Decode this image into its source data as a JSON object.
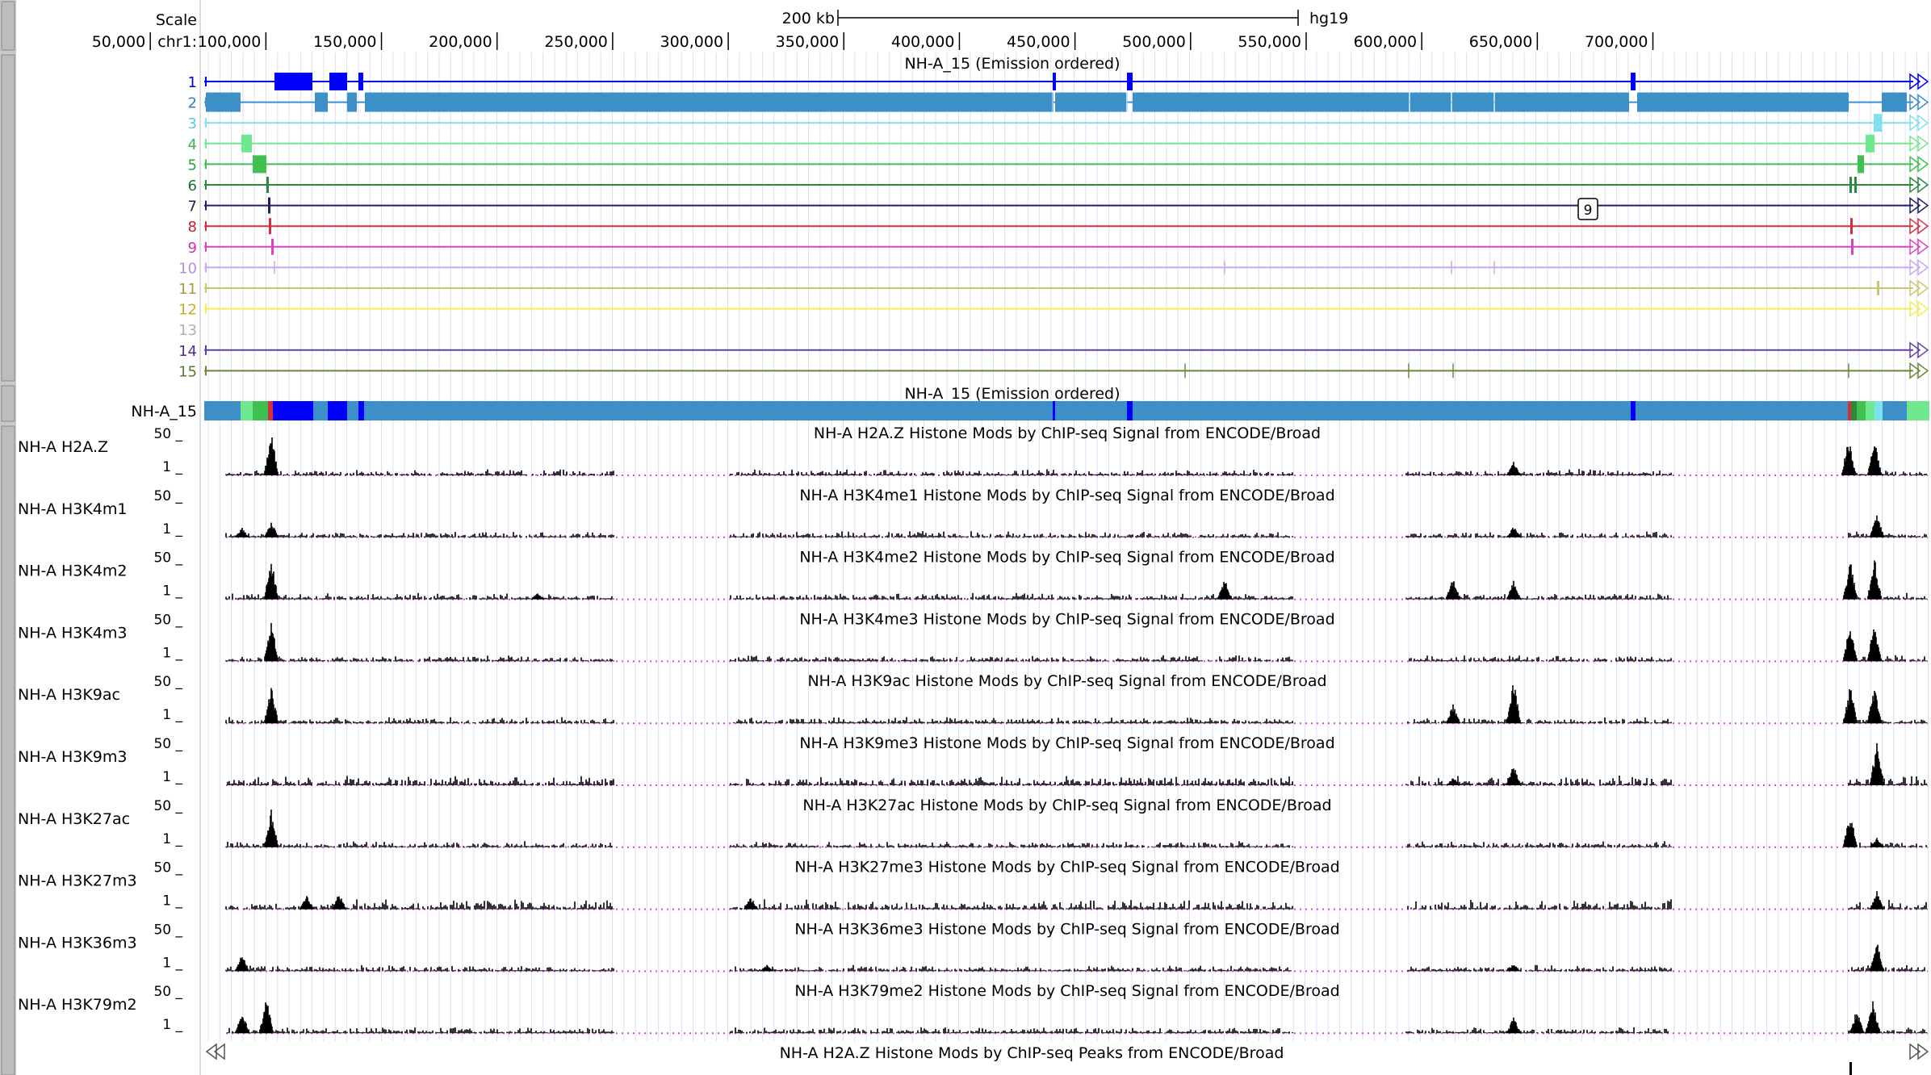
{
  "ruler": {
    "scale_label": "Scale",
    "chrom_label": "chr1:",
    "scale_bar_text": "200 kb",
    "assembly": "hg19",
    "ticks": [
      "50,000",
      "100,000",
      "150,000",
      "200,000",
      "250,000",
      "300,000",
      "350,000",
      "400,000",
      "450,000",
      "500,000",
      "550,000",
      "600,000",
      "650,000",
      "700,000"
    ]
  },
  "chromhmm": {
    "title": "NH-A_15 (Emission ordered)",
    "dense_title": "NH-A_15 (Emission ordered)",
    "dense_label": "NH-A_15",
    "state_numbers": [
      "1",
      "2",
      "3",
      "4",
      "5",
      "6",
      "7",
      "8",
      "9",
      "10",
      "11",
      "12",
      "13",
      "14",
      "15"
    ],
    "state_colors": [
      "#0000ff",
      "#3d8fc8",
      "#7fe0f0",
      "#70e890",
      "#40c050",
      "#2a8a3a",
      "#202060",
      "#d03040",
      "#e040c0",
      "#c8a8f0",
      "#c8c870",
      "#f0f050",
      "#d8d8d8",
      "#6040a0",
      "#6a8a3a"
    ],
    "label_colors": [
      "#0000cc",
      "#2a7fc0",
      "#60c8e0",
      "#40b060",
      "#30a040",
      "#207030",
      "#202050",
      "#c02030",
      "#d030a0",
      "#b090e0",
      "#a0a040",
      "#c0b020",
      "#b0b0b0",
      "#503090",
      "#5a7a30"
    ],
    "item_label": "9"
  },
  "histone_tracks": {
    "scale_max": "50",
    "scale_min": "1",
    "peaks_title": "NH-A H2A.Z Histone Mods by ChIP-seq Peaks from ENCODE/Broad",
    "tracks": [
      {
        "label": "NH-A H2A.Z",
        "title": "NH-A H2A.Z Histone Mods by ChIP-seq Signal from ENCODE/Broad"
      },
      {
        "label": "NH-A H3K4m1",
        "title": "NH-A H3K4me1 Histone Mods by ChIP-seq Signal from ENCODE/Broad"
      },
      {
        "label": "NH-A H3K4m2",
        "title": "NH-A H3K4me2 Histone Mods by ChIP-seq Signal from ENCODE/Broad"
      },
      {
        "label": "NH-A H3K4m3",
        "title": "NH-A H3K4me3 Histone Mods by ChIP-seq Signal from ENCODE/Broad"
      },
      {
        "label": "NH-A H3K9ac",
        "title": "NH-A H3K9ac Histone Mods by ChIP-seq Signal from ENCODE/Broad"
      },
      {
        "label": "NH-A H3K9m3",
        "title": "NH-A H3K9me3 Histone Mods by ChIP-seq Signal from ENCODE/Broad"
      },
      {
        "label": "NH-A H3K27ac",
        "title": "NH-A H3K27ac Histone Mods by ChIP-seq Signal from ENCODE/Broad"
      },
      {
        "label": "NH-A H3K27m3",
        "title": "NH-A H3K27me3 Histone Mods by ChIP-seq Signal from ENCODE/Broad"
      },
      {
        "label": "NH-A H3K36m3",
        "title": "NH-A H3K36me3 Histone Mods by ChIP-seq Signal from ENCODE/Broad"
      },
      {
        "label": "NH-A H3K79m2",
        "title": "NH-A H3K79me2 Histone Mods by ChIP-seq Signal from ENCODE/Broad"
      }
    ]
  }
}
